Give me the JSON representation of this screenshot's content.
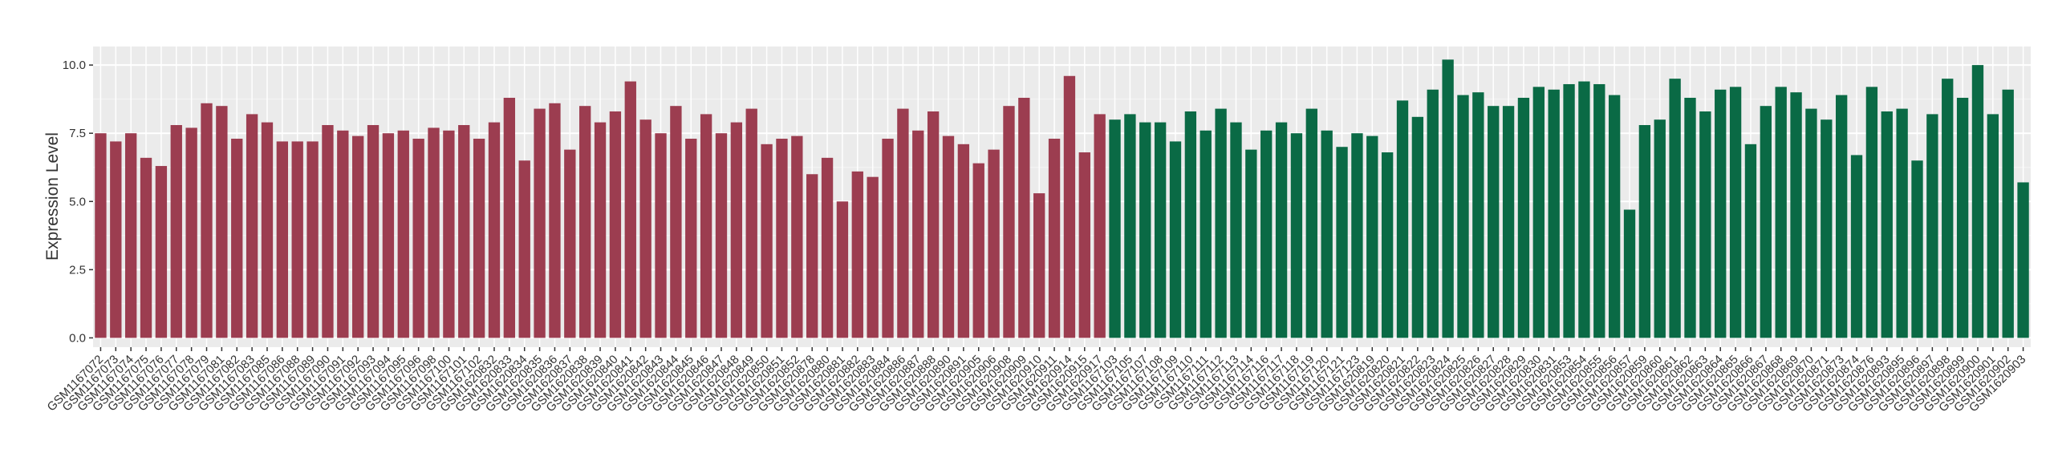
{
  "chart_data": {
    "type": "bar",
    "y_label": "Expression Level",
    "ylim": [
      -0.34,
      10.68
    ],
    "yticks": [
      {
        "value": 0,
        "label": "0.0"
      },
      2.5,
      {
        "value": 5,
        "label": "5.0"
      },
      7.5,
      {
        "value": 10,
        "label": "10.0"
      }
    ],
    "grid": true,
    "series": [
      {
        "color": "#9c3d50",
        "categories": [
          "GSM1167072",
          "GSM1167073",
          "GSM1167074",
          "GSM1167075",
          "GSM1167076",
          "GSM1167077",
          "GSM1167078",
          "GSM1167079",
          "GSM1167081",
          "GSM1167082",
          "GSM1167083",
          "GSM1167085",
          "GSM1167086",
          "GSM1167088",
          "GSM1167089",
          "GSM1167090",
          "GSM1167091",
          "GSM1167092",
          "GSM1167093",
          "GSM1167094",
          "GSM1167095",
          "GSM1167096",
          "GSM1167098",
          "GSM1167100",
          "GSM1167101",
          "GSM1167102",
          "GSM1620832",
          "GSM1620833",
          "GSM1620834",
          "GSM1620835",
          "GSM1620836",
          "GSM1620837",
          "GSM1620838",
          "GSM1620839",
          "GSM1620840",
          "GSM1620841",
          "GSM1620842",
          "GSM1620843",
          "GSM1620844",
          "GSM1620845",
          "GSM1620846",
          "GSM1620847",
          "GSM1620848",
          "GSM1620849",
          "GSM1620850",
          "GSM1620851",
          "GSM1620852",
          "GSM1620878",
          "GSM1620880",
          "GSM1620881",
          "GSM1620882",
          "GSM1620883",
          "GSM1620884",
          "GSM1620886",
          "GSM1620887",
          "GSM1620888",
          "GSM1620890",
          "GSM1620891",
          "GSM1620905",
          "GSM1620906",
          "GSM1620908",
          "GSM1620909",
          "GSM1620910",
          "GSM1620911",
          "GSM1620914",
          "GSM1620915",
          "GSM1620917"
        ],
        "values": [
          7.5,
          7.2,
          7.5,
          6.6,
          6.3,
          7.8,
          7.7,
          8.6,
          8.5,
          7.3,
          8.2,
          7.9,
          7.2,
          7.2,
          7.2,
          7.8,
          7.6,
          7.4,
          7.8,
          7.5,
          7.6,
          7.3,
          7.7,
          7.6,
          7.8,
          7.3,
          7.9,
          8.8,
          6.5,
          8.4,
          8.6,
          6.9,
          8.5,
          7.9,
          8.3,
          9.4,
          8.0,
          7.5,
          8.5,
          7.3,
          8.2,
          7.5,
          7.9,
          8.4,
          7.1,
          7.3,
          7.4,
          6.0,
          6.6,
          5.0,
          6.1,
          5.9,
          7.3,
          8.4,
          7.6,
          8.3,
          7.4,
          7.1,
          6.4,
          6.9,
          8.5,
          8.8,
          5.3,
          7.3,
          9.6,
          6.8,
          8.2
        ]
      },
      {
        "color": "#0a6a45",
        "categories": [
          "GSM1167103",
          "GSM1167105",
          "GSM1167107",
          "GSM1167108",
          "GSM1167109",
          "GSM1167110",
          "GSM1167111",
          "GSM1167112",
          "GSM1167113",
          "GSM1167114",
          "GSM1167116",
          "GSM1167117",
          "GSM1167118",
          "GSM1167119",
          "GSM1167120",
          "GSM1167121",
          "GSM1167123",
          "GSM1620819",
          "GSM1620820",
          "GSM1620821",
          "GSM1620822",
          "GSM1620823",
          "GSM1620824",
          "GSM1620825",
          "GSM1620826",
          "GSM1620827",
          "GSM1620828",
          "GSM1620829",
          "GSM1620830",
          "GSM1620831",
          "GSM1620853",
          "GSM1620854",
          "GSM1620855",
          "GSM1620856",
          "GSM1620857",
          "GSM1620859",
          "GSM1620860",
          "GSM1620861",
          "GSM1620862",
          "GSM1620863",
          "GSM1620864",
          "GSM1620865",
          "GSM1620866",
          "GSM1620867",
          "GSM1620868",
          "GSM1620869",
          "GSM1620870",
          "GSM1620871",
          "GSM1620873",
          "GSM1620874",
          "GSM1620876",
          "GSM1620893",
          "GSM1620895",
          "GSM1620896",
          "GSM1620897",
          "GSM1620898",
          "GSM1620899",
          "GSM1620900",
          "GSM1620901",
          "GSM1620902",
          "GSM1620903"
        ],
        "values": [
          8.0,
          8.2,
          7.9,
          7.9,
          7.2,
          8.3,
          7.6,
          8.4,
          7.9,
          6.9,
          7.6,
          7.9,
          7.5,
          8.4,
          7.6,
          7.0,
          7.5,
          7.4,
          6.8,
          8.7,
          8.1,
          9.1,
          10.2,
          8.9,
          9.0,
          8.5,
          8.5,
          8.8,
          9.2,
          9.1,
          9.3,
          9.4,
          9.3,
          8.9,
          4.7,
          7.8,
          8.0,
          9.5,
          8.8,
          8.3,
          9.1,
          9.2,
          7.1,
          8.5,
          9.2,
          9.0,
          8.4,
          8.0,
          8.9,
          6.7,
          9.2,
          8.3,
          8.4,
          6.5,
          8.2,
          9.5,
          8.8,
          10.0,
          8.2,
          9.1,
          5.7
        ]
      }
    ]
  }
}
